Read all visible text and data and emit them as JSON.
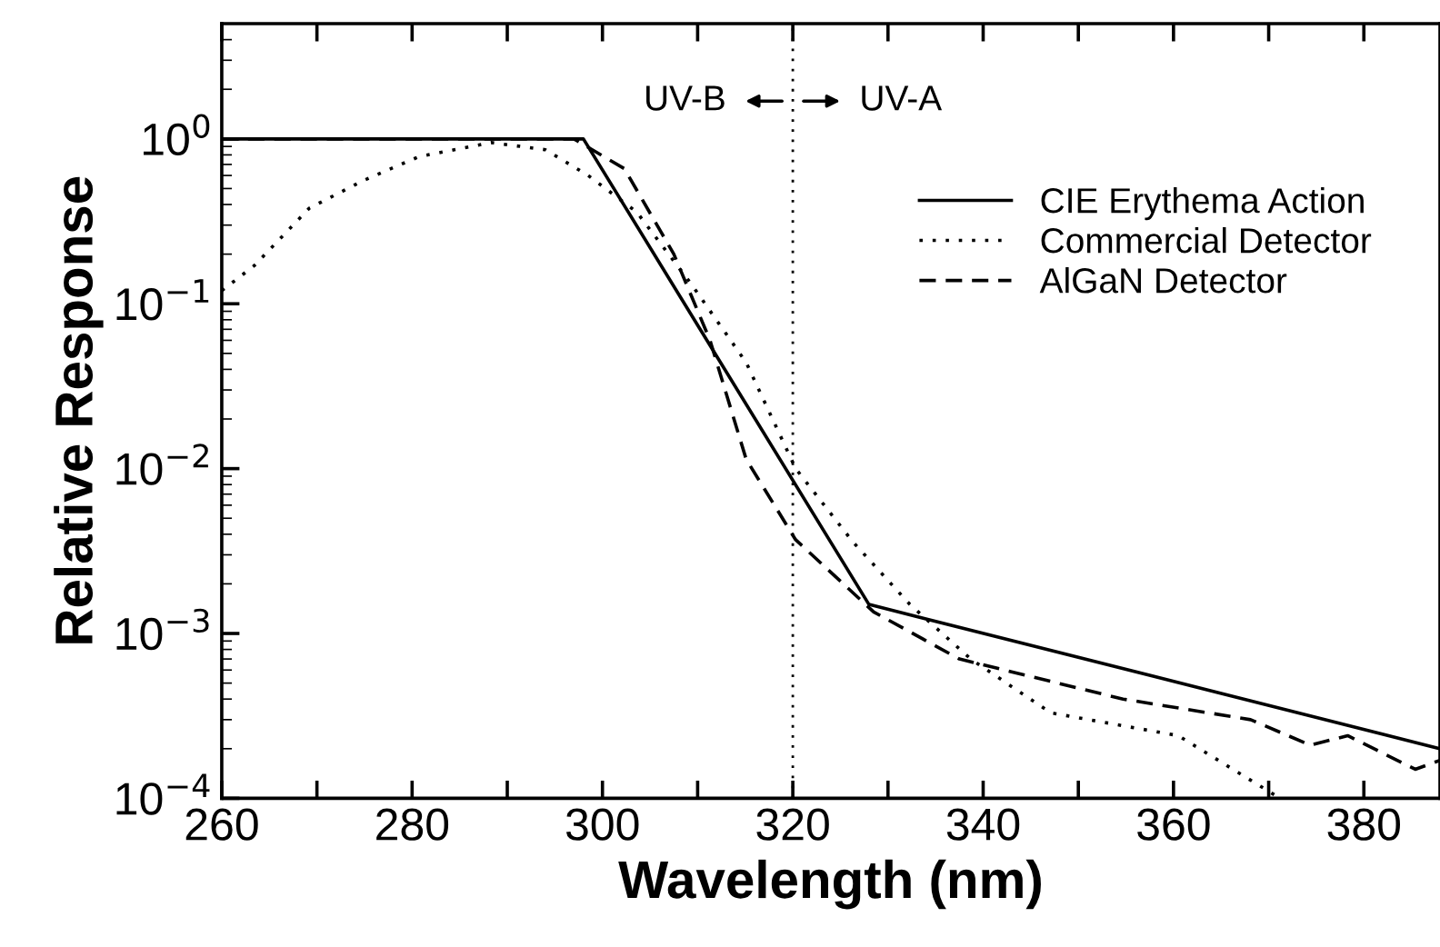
{
  "chart_data": {
    "type": "line",
    "xlabel": "Wavelength (nm)",
    "ylabel": "Relative Response",
    "log": "y",
    "xlim": [
      260,
      388
    ],
    "xticks": [
      260,
      {
        "value": 270,
        "label": null
      },
      280,
      {
        "value": 290,
        "label": null
      },
      300,
      {
        "value": 310,
        "label": null
      },
      320,
      {
        "value": 330,
        "label": null
      },
      340,
      {
        "value": 350,
        "label": null
      },
      360,
      {
        "value": 370,
        "label": null
      },
      380
    ],
    "ylim": [
      0.0001,
      5
    ],
    "yticks": [
      {
        "value": 1,
        "label": "10$^{0}$"
      },
      {
        "value": 0.1,
        "label": "10$^{−1}$"
      },
      {
        "value": 0.01,
        "label": "10$^{−2}$"
      },
      {
        "value": 0.001,
        "label": "10$^{−3}$"
      },
      {
        "value": 0.0001,
        "label": "10$^{−4}$"
      }
    ],
    "grid": false,
    "legend": "top right",
    "marker": "none",
    "ref_lines": [
      {
        "axis": "x",
        "value": 320,
        "line_style": "dotted",
        "color": "#000000"
      }
    ],
    "annotations": [
      "UV-B",
      "UV-A"
    ],
    "series": [
      {
        "name": "CIE Erythema Action",
        "color": "#000000",
        "line_style": "solid",
        "x": [
          260,
          298,
          328,
          388
        ],
        "values": [
          1,
          1,
          0.0015,
          0.0002
        ]
      },
      {
        "name": "Commercial Detector",
        "color": "#000000",
        "line_style": "dotted",
        "x": [
          260,
          263.4,
          269.2,
          274.9,
          280.7,
          288.3,
          294,
          298.5,
          303.6,
          309.4,
          315.1,
          320.3,
          326.3,
          332.3,
          338.7,
          347.1,
          360.5,
          370.6,
          371.5
        ],
        "values": [
          0.12,
          0.17,
          0.38,
          0.56,
          0.78,
          0.95,
          0.86,
          0.6,
          0.36,
          0.13,
          0.044,
          0.01,
          0.0036,
          0.0015,
          0.0007,
          0.00033,
          0.00024,
          0.000105,
          0.0001
        ]
      },
      {
        "name": "AlGaN Detector",
        "color": "#000000",
        "line_style": "dashed",
        "x": [
          260,
          297,
          302.3,
          307.5,
          311.3,
          315.1,
          320.3,
          328.5,
          337.5,
          354.7,
          368.1,
          374.4,
          378.3,
          385.4,
          388
        ],
        "values": [
          1,
          1,
          0.66,
          0.2,
          0.06,
          0.0114,
          0.0037,
          0.00135,
          0.0007,
          0.0004,
          0.0003,
          0.00021,
          0.00024,
          0.00015,
          0.00017
        ]
      }
    ]
  }
}
